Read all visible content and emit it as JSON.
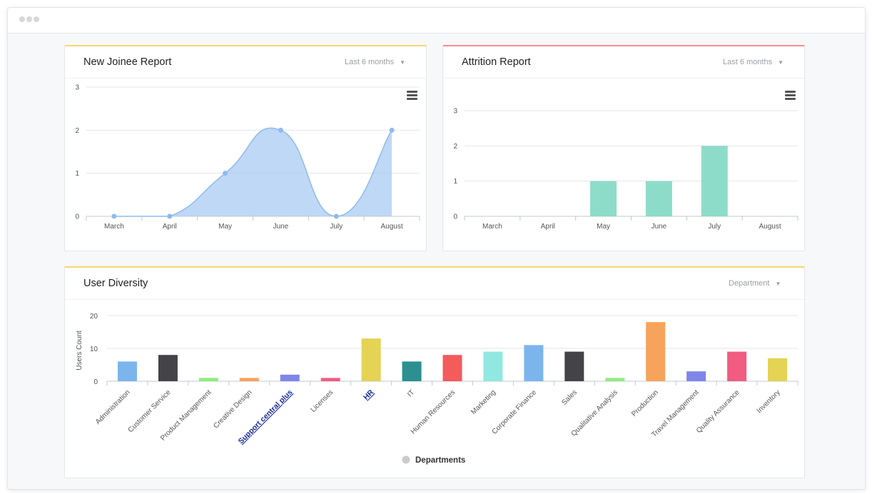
{
  "window": {
    "dots": 3
  },
  "joinee": {
    "title": "New Joinee Report",
    "filter": "Last 6 months",
    "accent": "#f5d76e",
    "chart_data": {
      "type": "area",
      "categories": [
        "March",
        "April",
        "May",
        "June",
        "July",
        "August"
      ],
      "values": [
        0,
        0,
        1,
        2,
        0,
        2
      ],
      "yticks": [
        0,
        1,
        2,
        3
      ],
      "ylim": [
        0,
        3
      ],
      "color": "#a9cbf1",
      "line_color": "#8ebbee"
    }
  },
  "attrition": {
    "title": "Attrition Report",
    "filter": "Last 6 months",
    "accent": "#f08f94",
    "chart_data": {
      "type": "bar",
      "categories": [
        "March",
        "April",
        "May",
        "June",
        "July",
        "August"
      ],
      "values": [
        0,
        0,
        1,
        1,
        2,
        0
      ],
      "yticks": [
        0,
        1,
        2,
        3
      ],
      "ylim": [
        0,
        3
      ],
      "color": "#8ddcc9"
    }
  },
  "diversity": {
    "title": "User Diversity",
    "filter": "Department",
    "accent": "#f5d76e",
    "chart_data": {
      "type": "bar",
      "ylabel": "Users Count",
      "yticks": [
        0,
        10,
        20
      ],
      "ylim": [
        0,
        20
      ],
      "categories": [
        "Administration",
        "Customer Service",
        "Product Management",
        "Creative Design",
        "Support central plus",
        "Licenses",
        "HR",
        "IT",
        "Human Resources",
        "Marketing",
        "Corporate Finance",
        "Sales",
        "Qualitative Analysis",
        "Production",
        "Travel Management",
        "Quality Assurance",
        "Inventory"
      ],
      "values": [
        6,
        8,
        1,
        1,
        2,
        1,
        13,
        6,
        8,
        9,
        11,
        9,
        1,
        18,
        3,
        9,
        7
      ],
      "colors": [
        "#7cb5ec",
        "#434348",
        "#90ed7d",
        "#f7a35c",
        "#8085e9",
        "#f15c80",
        "#e4d354",
        "#2b908f",
        "#f45b5b",
        "#91e8e1",
        "#7cb5ec",
        "#434348",
        "#90ed7d",
        "#f7a35c",
        "#8085e9",
        "#f15c80",
        "#e4d354"
      ],
      "link_categories": [
        "Support central plus",
        "HR"
      ],
      "link_color": "#1a2d9e",
      "legend": "Departments",
      "legend_color": "#cccccc"
    }
  }
}
